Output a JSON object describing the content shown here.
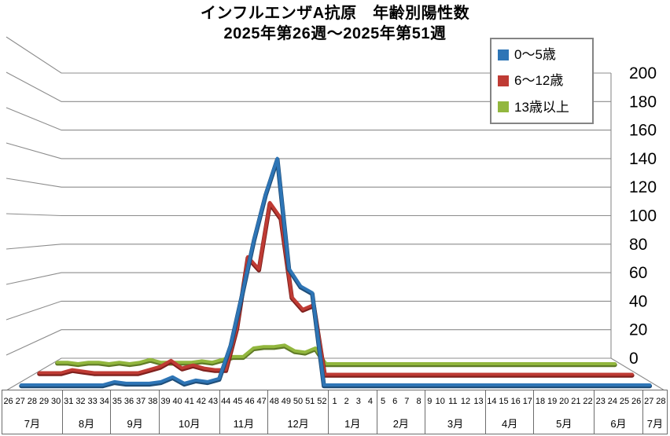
{
  "title": {
    "line1": "インフルエンザA抗原　年齢別陽性数",
    "line2": "2025年第26週～2025年第51週"
  },
  "legend": {
    "items": [
      {
        "label": "0～5歳",
        "color": "#2E75B6"
      },
      {
        "label": "6～12歳",
        "color": "#BF3B34"
      },
      {
        "label": "13歳以上",
        "color": "#92B73E"
      }
    ]
  },
  "chart_data": {
    "type": "line",
    "style": "3d-perspective-line",
    "title": "インフルエンザA抗原　年齢別陽性数",
    "subtitle": "2025年第26週～2025年第51週",
    "xlabel": "",
    "ylabel": "",
    "ylim": [
      0,
      200
    ],
    "yticks": [
      0,
      20,
      40,
      60,
      80,
      100,
      120,
      140,
      160,
      180,
      200
    ],
    "grid": true,
    "legend_position": "top-right",
    "grid_color": "#8C8C8C",
    "month_groups": [
      {
        "label": "7月",
        "weeks": [
          26,
          27,
          28,
          29,
          30
        ]
      },
      {
        "label": "8月",
        "weeks": [
          31,
          32,
          33,
          34
        ]
      },
      {
        "label": "9月",
        "weeks": [
          35,
          36,
          37,
          38
        ]
      },
      {
        "label": "10月",
        "weeks": [
          39,
          40,
          41,
          42,
          43
        ]
      },
      {
        "label": "11月",
        "weeks": [
          44,
          45,
          46,
          47
        ]
      },
      {
        "label": "12月",
        "weeks": [
          48,
          49,
          50,
          51,
          52
        ]
      },
      {
        "label": "1月",
        "weeks": [
          1,
          2,
          3,
          4
        ]
      },
      {
        "label": "2月",
        "weeks": [
          5,
          6,
          7,
          8
        ]
      },
      {
        "label": "3月",
        "weeks": [
          9,
          10,
          11,
          12,
          13
        ]
      },
      {
        "label": "4月",
        "weeks": [
          14,
          15,
          16,
          17
        ]
      },
      {
        "label": "5月",
        "weeks": [
          18,
          19,
          20,
          21,
          22
        ]
      },
      {
        "label": "6月",
        "weeks": [
          23,
          24,
          25,
          26
        ]
      },
      {
        "label": "7月",
        "weeks": [
          27,
          28
        ]
      }
    ],
    "series": [
      {
        "name": "0～5歳",
        "color": "#2E75B6",
        "edge_color": "#1F4E79",
        "values": [
          0,
          0,
          0,
          0,
          0,
          0,
          0,
          0,
          2,
          1,
          1,
          1,
          2,
          5,
          1,
          3,
          2,
          4,
          25,
          57,
          90,
          118,
          140,
          72,
          61,
          57,
          0,
          0,
          0,
          0,
          0,
          0,
          0,
          0,
          0,
          0,
          0,
          0,
          0,
          0,
          0,
          0,
          0,
          0,
          0,
          0,
          0,
          0,
          0,
          0,
          0,
          0,
          0,
          0,
          0
        ]
      },
      {
        "name": "6～12歳",
        "color": "#BF3B34",
        "edge_color": "#7F201D",
        "values": [
          1,
          1,
          1,
          3,
          2,
          1,
          1,
          1,
          1,
          1,
          3,
          5,
          9,
          4,
          6,
          4,
          3,
          3,
          30,
          76,
          68,
          111,
          101,
          50,
          42,
          45,
          0,
          0,
          0,
          0,
          0,
          0,
          0,
          0,
          0,
          0,
          0,
          0,
          0,
          0,
          0,
          0,
          0,
          0,
          0,
          0,
          0,
          0,
          0,
          0,
          0,
          0,
          0,
          0,
          0
        ]
      },
      {
        "name": "13歳以上",
        "color": "#92B73E",
        "edge_color": "#5F7A26",
        "values": [
          1,
          1,
          0,
          1,
          1,
          0,
          1,
          0,
          1,
          3,
          1,
          1,
          1,
          1,
          2,
          1,
          3,
          5,
          5,
          11,
          12,
          12,
          13,
          9,
          8,
          11,
          0,
          0,
          0,
          0,
          0,
          0,
          0,
          0,
          0,
          0,
          0,
          0,
          0,
          0,
          0,
          0,
          0,
          0,
          0,
          0,
          0,
          0,
          0,
          0,
          0,
          0,
          0,
          0,
          0
        ]
      }
    ]
  }
}
